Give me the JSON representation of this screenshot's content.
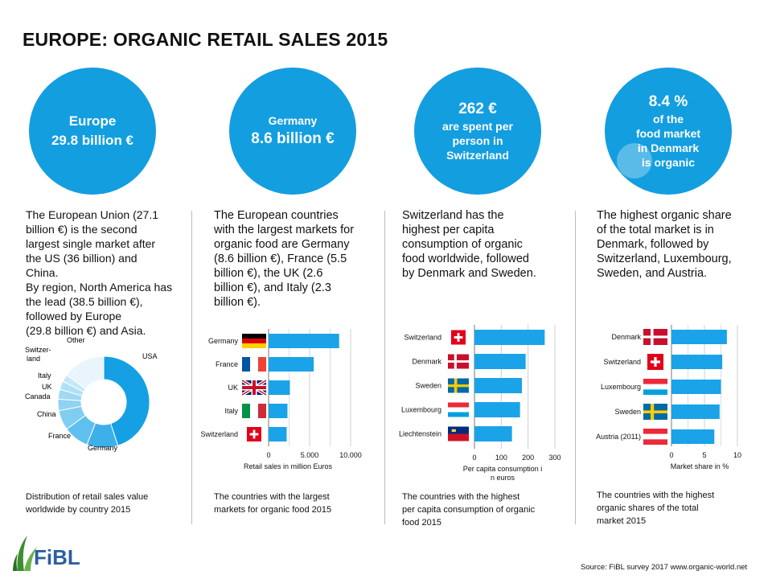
{
  "title": "EUROPE: ORGANIC RETAIL SALES 2015",
  "colors": {
    "accent": "#139ee0",
    "bar": "#1aa3e8",
    "light": "#bfe4f7"
  },
  "circles": [
    {
      "line1": "Europe",
      "line2": "29.8 billion €"
    },
    {
      "line1": "Germany",
      "line2": "8.6 billion €"
    },
    {
      "line1": "262 €",
      "line2": "are spent per",
      "line3": "person in",
      "line4": "Switzerland"
    },
    {
      "line1": "8.4 %",
      "line2": "of the",
      "line3": "food market",
      "line4": "in Denmark",
      "line5": "is organic"
    }
  ],
  "texts": {
    "col1": [
      "The European Union (27.1",
      "billion €) is the second",
      "largest single market after",
      "the US (36 billion)  and",
      "China.",
      "By region, North America has",
      "the lead (38.5 billion €),",
      "followed by Europe",
      "(29.8 billion €) and Asia."
    ],
    "col2": [
      "The European countries",
      "with the largest markets for",
      "organic food are Germany",
      "(8.6 billion €), France (5.5",
      "billion €), the UK (2.6",
      "billion €), and Italy   (2.3",
      "billion €)."
    ],
    "col3": [
      "Switzerland has the",
      "highest per capita",
      "consumption of organic",
      "food worldwide, followed",
      "by Denmark and Sweden."
    ],
    "col4": [
      "The highest organic share",
      "of the total market is in",
      "Denmark, followed by",
      "Switzerland, Luxembourg,",
      "Sweden, and Austria."
    ]
  },
  "captions": {
    "c1": [
      "Distribution of retail sales value",
      "worldwide by country 2015"
    ],
    "c2": [
      "The countries with the largest",
      "markets for organic food  2015"
    ],
    "c3": [
      "The countries with the highest",
      "per capita consumption of organic",
      "food 2015"
    ],
    "c4": [
      "The countries with  the highest",
      "organic shares of the total",
      "market  2015"
    ]
  },
  "source": "Source: FiBL survey 2017 www.organic-world.net",
  "logo_text": "FiBL",
  "chart_data": [
    {
      "type": "pie",
      "labels": [
        "USA",
        "Germany",
        "France",
        "China",
        "Canada",
        "UK",
        "Italy",
        "Switzer-land",
        "Other"
      ],
      "values": [
        45,
        11,
        9,
        7,
        4,
        3.5,
        3,
        2.5,
        15
      ]
    },
    {
      "type": "bar",
      "categories": [
        "Germany",
        "France",
        "UK",
        "Italy",
        "Switzerland"
      ],
      "values": [
        8.6,
        5.5,
        2.6,
        2.3,
        2.2
      ],
      "xlabel": "Retail sales in million Euros",
      "ticks": [
        "0",
        "5.000",
        "10.000"
      ],
      "xlim": [
        0,
        10
      ]
    },
    {
      "type": "bar",
      "categories": [
        "Switzerland",
        "Denmark",
        "Sweden",
        "Luxembourg",
        "Liechtenstein"
      ],
      "values": [
        262,
        191,
        177,
        170,
        140
      ],
      "xlabel": "Per capita consumption in euros",
      "ticks": [
        "0",
        "100",
        "200",
        "300"
      ],
      "xlim": [
        0,
        300
      ]
    },
    {
      "type": "bar",
      "categories": [
        "Denmark",
        "Switzerland",
        "Luxembourg",
        "Sweden",
        "Austria (2011)"
      ],
      "values": [
        8.4,
        7.7,
        7.5,
        7.3,
        6.5
      ],
      "xlabel": "Market share in %",
      "ticks": [
        "0",
        "5",
        "10"
      ],
      "xlim": [
        0,
        10
      ]
    }
  ]
}
